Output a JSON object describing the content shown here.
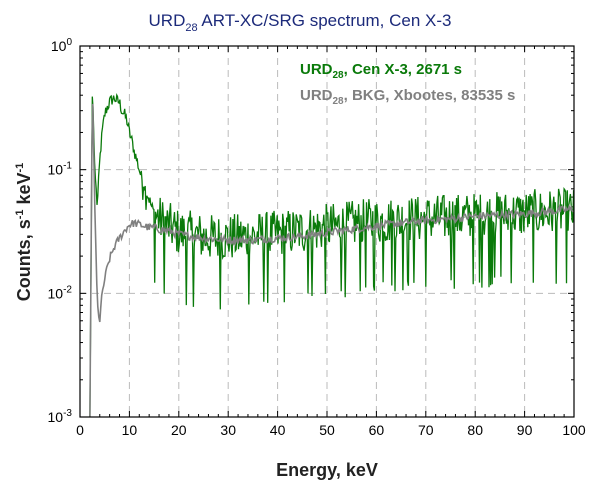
{
  "chart_data": {
    "type": "line",
    "title": {
      "prefix": "URD",
      "sub": "28",
      "rest": " ART-XC/SRG spectrum, Cen X-3"
    },
    "xlabel": "Energy, keV",
    "ylabel": {
      "base": "Counts, s",
      "sup1": "-1",
      "mid": " keV",
      "sup2": "-1"
    },
    "xlim": [
      0,
      100
    ],
    "ylim": [
      0.001,
      1
    ],
    "yscale": "log",
    "grid": true,
    "legend_position": "top-right",
    "x_ticks": [
      "0",
      "10",
      "20",
      "30",
      "40",
      "50",
      "60",
      "70",
      "80",
      "90",
      "100"
    ],
    "y_ticks": [
      {
        "base": "10",
        "exp": "-3"
      },
      {
        "base": "10",
        "exp": "-2"
      },
      {
        "base": "10",
        "exp": "-1"
      },
      {
        "base": "10",
        "exp": "0"
      }
    ],
    "series": [
      {
        "name_prefix": "URD",
        "name_sub": "28",
        "name_rest": ", Cen X-3, 2671 s",
        "color": "#0a7a0a",
        "x": [
          2,
          2.5,
          3,
          3.5,
          4,
          4.5,
          5,
          5.5,
          6,
          6.5,
          7,
          7.5,
          8,
          8.5,
          9,
          9.5,
          10,
          10.5,
          11,
          11.5,
          12,
          12.5,
          13,
          13.5,
          14,
          14.5,
          15,
          16,
          17,
          18,
          19,
          20,
          22,
          24,
          26,
          28,
          30,
          35,
          40,
          45,
          50,
          55,
          60,
          65,
          70,
          75,
          80,
          85,
          90,
          95,
          100
        ],
        "y": [
          0.001,
          0.5,
          0.1,
          0.05,
          0.12,
          0.2,
          0.28,
          0.32,
          0.35,
          0.37,
          0.38,
          0.36,
          0.35,
          0.3,
          0.28,
          0.25,
          0.2,
          0.17,
          0.14,
          0.12,
          0.1,
          0.085,
          0.075,
          0.065,
          0.058,
          0.05,
          0.045,
          0.04,
          0.037,
          0.035,
          0.033,
          0.031,
          0.03,
          0.029,
          0.028,
          0.028,
          0.028,
          0.029,
          0.03,
          0.032,
          0.034,
          0.036,
          0.038,
          0.039,
          0.04,
          0.041,
          0.042,
          0.043,
          0.044,
          0.045,
          0.045
        ]
      },
      {
        "name_prefix": "URD",
        "name_sub": "28",
        "name_rest": ", BKG, Xbootes, 83535 s",
        "color": "#808080",
        "x": [
          2,
          2.5,
          3,
          3.5,
          4,
          4.5,
          5,
          5.5,
          6,
          7,
          8,
          9,
          10,
          11,
          12,
          13,
          14,
          15,
          16,
          18,
          20,
          25,
          30,
          35,
          40,
          45,
          50,
          55,
          60,
          65,
          70,
          75,
          80,
          85,
          90,
          95,
          100
        ],
        "y": [
          0.001,
          0.55,
          0.05,
          0.008,
          0.006,
          0.01,
          0.013,
          0.016,
          0.019,
          0.024,
          0.028,
          0.032,
          0.036,
          0.037,
          0.036,
          0.035,
          0.034,
          0.034,
          0.033,
          0.032,
          0.03,
          0.028,
          0.027,
          0.027,
          0.028,
          0.029,
          0.031,
          0.033,
          0.035,
          0.037,
          0.039,
          0.04,
          0.042,
          0.043,
          0.044,
          0.046,
          0.048
        ]
      }
    ]
  }
}
